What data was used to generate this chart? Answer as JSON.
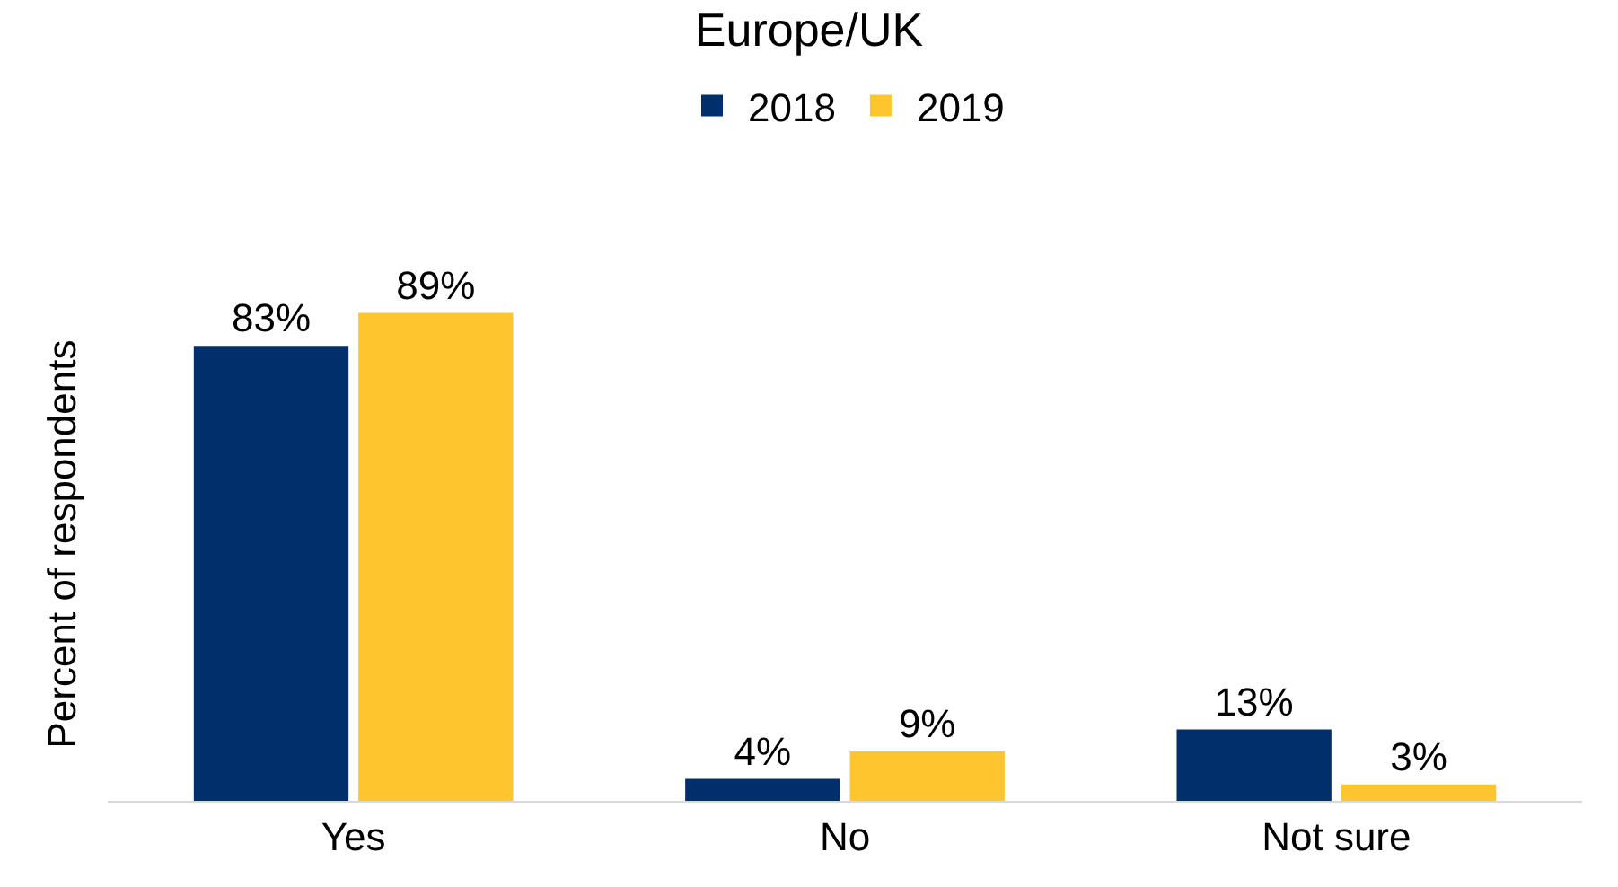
{
  "chart_data": {
    "type": "bar",
    "title": "Europe/UK",
    "ylabel": "Percent of respondents",
    "categories": [
      "Yes",
      "No",
      "Not sure"
    ],
    "series": [
      {
        "name": "2018",
        "color": "#002f6c",
        "values": [
          83,
          4,
          13
        ],
        "value_labels": [
          "83%",
          "4%",
          "13%"
        ]
      },
      {
        "name": "2019",
        "color": "#fec52e",
        "values": [
          89,
          9,
          3
        ],
        "value_labels": [
          "89%",
          "9%",
          "3%"
        ]
      }
    ],
    "tick_labels": "x",
    "legend": "top"
  }
}
